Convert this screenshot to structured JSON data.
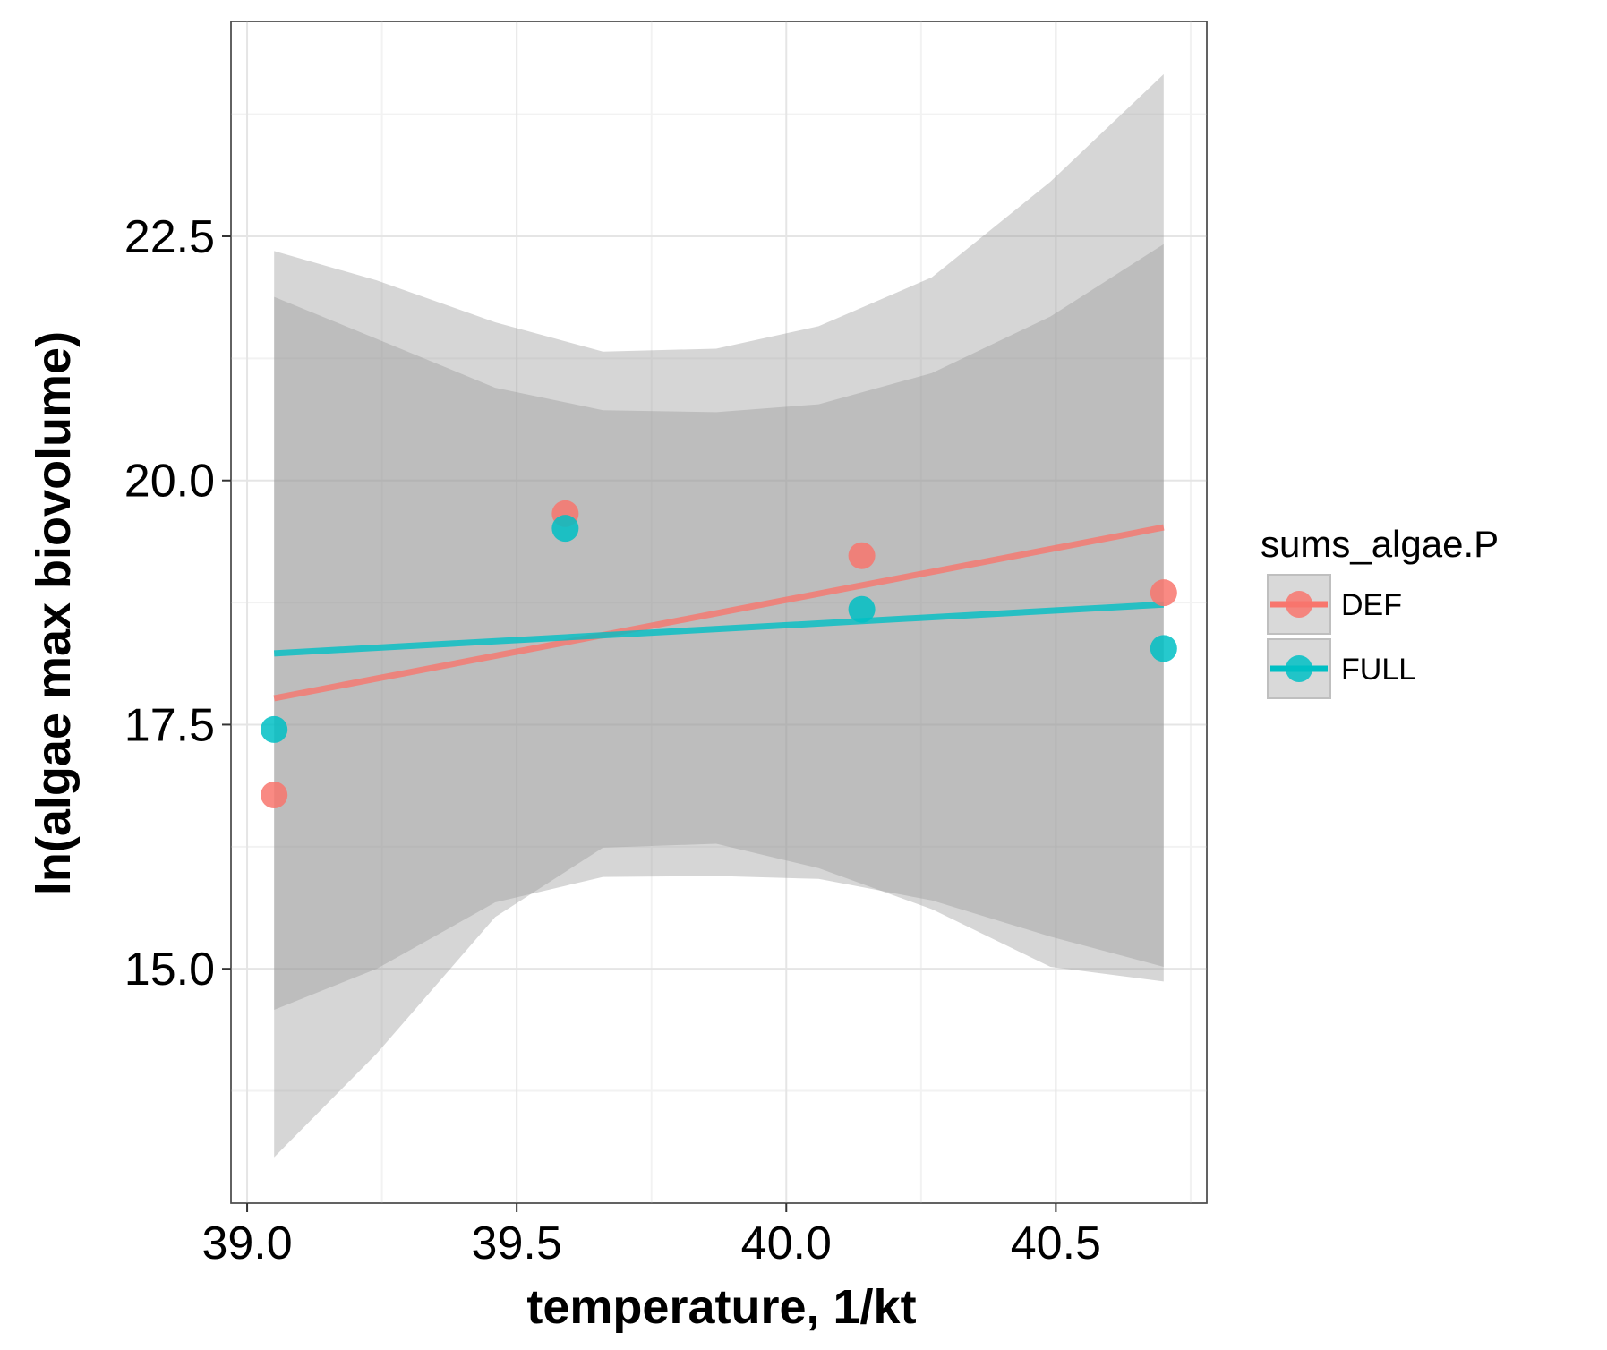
{
  "chart_data": {
    "type": "scatter",
    "xlabel": "temperature, 1/kt",
    "ylabel": "ln(algae max biovolume)",
    "xlim": [
      38.97,
      40.78
    ],
    "ylim": [
      12.6,
      24.7
    ],
    "x_ticks": [
      39.0,
      39.5,
      40.0,
      40.5
    ],
    "x_tick_labels": [
      "39.0",
      "39.5",
      "40.0",
      "40.5"
    ],
    "y_ticks": [
      15.0,
      17.5,
      20.0,
      22.5
    ],
    "y_tick_labels": [
      "15.0",
      "17.5",
      "20.0",
      "22.5"
    ],
    "grid": true,
    "legend": {
      "title": "sums_algae.P",
      "placement": "right"
    },
    "series": [
      {
        "name": "DEF",
        "color": "#F8766D",
        "points": [
          {
            "x": 39.05,
            "y": 16.78
          },
          {
            "x": 39.59,
            "y": 19.66
          },
          {
            "x": 40.14,
            "y": 19.23
          },
          {
            "x": 40.7,
            "y": 18.85
          }
        ],
        "fit_line": {
          "x": [
            39.05,
            40.7
          ],
          "y": [
            17.77,
            19.52
          ]
        },
        "confidence_band": {
          "x": [
            39.05,
            39.24,
            39.46,
            39.66,
            39.87,
            40.06,
            40.27,
            40.49,
            40.7
          ],
          "upper": [
            22.35,
            22.05,
            21.62,
            21.32,
            21.35,
            21.58,
            22.08,
            23.06,
            24.16
          ],
          "lower": [
            13.07,
            14.13,
            15.53,
            16.24,
            16.28,
            16.03,
            15.61,
            15.02,
            14.87
          ]
        }
      },
      {
        "name": "FULL",
        "color": "#00BFC4",
        "points": [
          {
            "x": 39.05,
            "y": 17.45
          },
          {
            "x": 39.59,
            "y": 19.51
          },
          {
            "x": 40.14,
            "y": 18.68
          },
          {
            "x": 40.7,
            "y": 18.28
          }
        ],
        "fit_line": {
          "x": [
            39.05,
            40.7
          ],
          "y": [
            18.23,
            18.73
          ]
        },
        "confidence_band": {
          "x": [
            39.05,
            39.24,
            39.46,
            39.66,
            39.87,
            40.06,
            40.27,
            40.49,
            40.7
          ],
          "upper": [
            21.88,
            21.45,
            20.95,
            20.72,
            20.7,
            20.78,
            21.1,
            21.68,
            22.42
          ],
          "lower": [
            14.58,
            15.0,
            15.68,
            15.94,
            15.95,
            15.92,
            15.7,
            15.33,
            15.02
          ]
        }
      }
    ]
  }
}
